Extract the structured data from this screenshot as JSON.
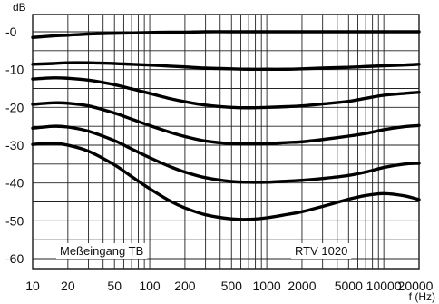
{
  "chart_data": {
    "type": "line",
    "title": "",
    "xlabel": "f (Hz)",
    "ylabel": "dB",
    "x_scale": "log",
    "xlim": [
      10,
      20000
    ],
    "ylim": [
      -65,
      0
    ],
    "grid": true,
    "x_ticks": [
      10,
      20,
      50,
      100,
      200,
      500,
      1000,
      2000,
      5000,
      10000,
      20000
    ],
    "x_tick_labels": [
      "10",
      "20",
      "50",
      "100",
      "200",
      "500",
      "1000",
      "2000",
      "5000",
      "10000",
      "20000"
    ],
    "y_tick_labels": [
      "-0",
      "-10",
      "-20",
      "-30",
      "-40",
      "-50",
      "-60"
    ],
    "annotations": [
      "Meßeingang TB",
      "RTV 1020"
    ],
    "x": [
      10,
      15,
      20,
      30,
      50,
      70,
      100,
      150,
      200,
      300,
      500,
      700,
      1000,
      1500,
      2000,
      3000,
      5000,
      7000,
      10000,
      15000,
      20000
    ],
    "series": [
      {
        "values": [
          -1.5,
          -1.1,
          -0.9,
          -0.6,
          -0.4,
          -0.3,
          -0.2,
          -0.1,
          -0.1,
          0,
          0,
          0,
          0,
          0,
          0,
          0,
          0,
          0,
          0,
          0,
          0
        ]
      },
      {
        "values": [
          -8.6,
          -8.4,
          -8.2,
          -8.2,
          -8.4,
          -8.6,
          -8.8,
          -9.1,
          -9.3,
          -9.6,
          -9.8,
          -9.9,
          -9.9,
          -9.9,
          -9.8,
          -9.6,
          -9.4,
          -9.2,
          -9.0,
          -8.8,
          -8.6
        ]
      },
      {
        "values": [
          -12.5,
          -12.2,
          -12.3,
          -12.8,
          -14.0,
          -15.1,
          -16.3,
          -17.7,
          -18.5,
          -19.4,
          -20.0,
          -20.1,
          -20.0,
          -19.8,
          -19.6,
          -19.1,
          -18.4,
          -17.6,
          -16.8,
          -16.3,
          -16.0
        ]
      },
      {
        "values": [
          -19.2,
          -18.8,
          -18.9,
          -19.6,
          -21.5,
          -23.1,
          -24.8,
          -26.6,
          -27.7,
          -28.9,
          -29.6,
          -29.7,
          -29.6,
          -29.3,
          -29.1,
          -28.5,
          -27.6,
          -26.9,
          -25.9,
          -25.1,
          -24.8
        ]
      },
      {
        "values": [
          -25.5,
          -25.0,
          -25.2,
          -26.3,
          -28.8,
          -31.0,
          -33.3,
          -35.7,
          -37.1,
          -38.6,
          -39.6,
          -39.8,
          -39.8,
          -39.5,
          -39.3,
          -38.8,
          -38.0,
          -37.1,
          -35.9,
          -35.0,
          -34.8
        ]
      },
      {
        "values": [
          -29.8,
          -29.5,
          -30.0,
          -31.6,
          -35.2,
          -38.3,
          -41.5,
          -44.8,
          -46.6,
          -48.4,
          -49.5,
          -49.6,
          -49.2,
          -48.3,
          -47.6,
          -46.2,
          -44.3,
          -43.3,
          -42.8,
          -43.4,
          -44.4
        ]
      }
    ]
  }
}
